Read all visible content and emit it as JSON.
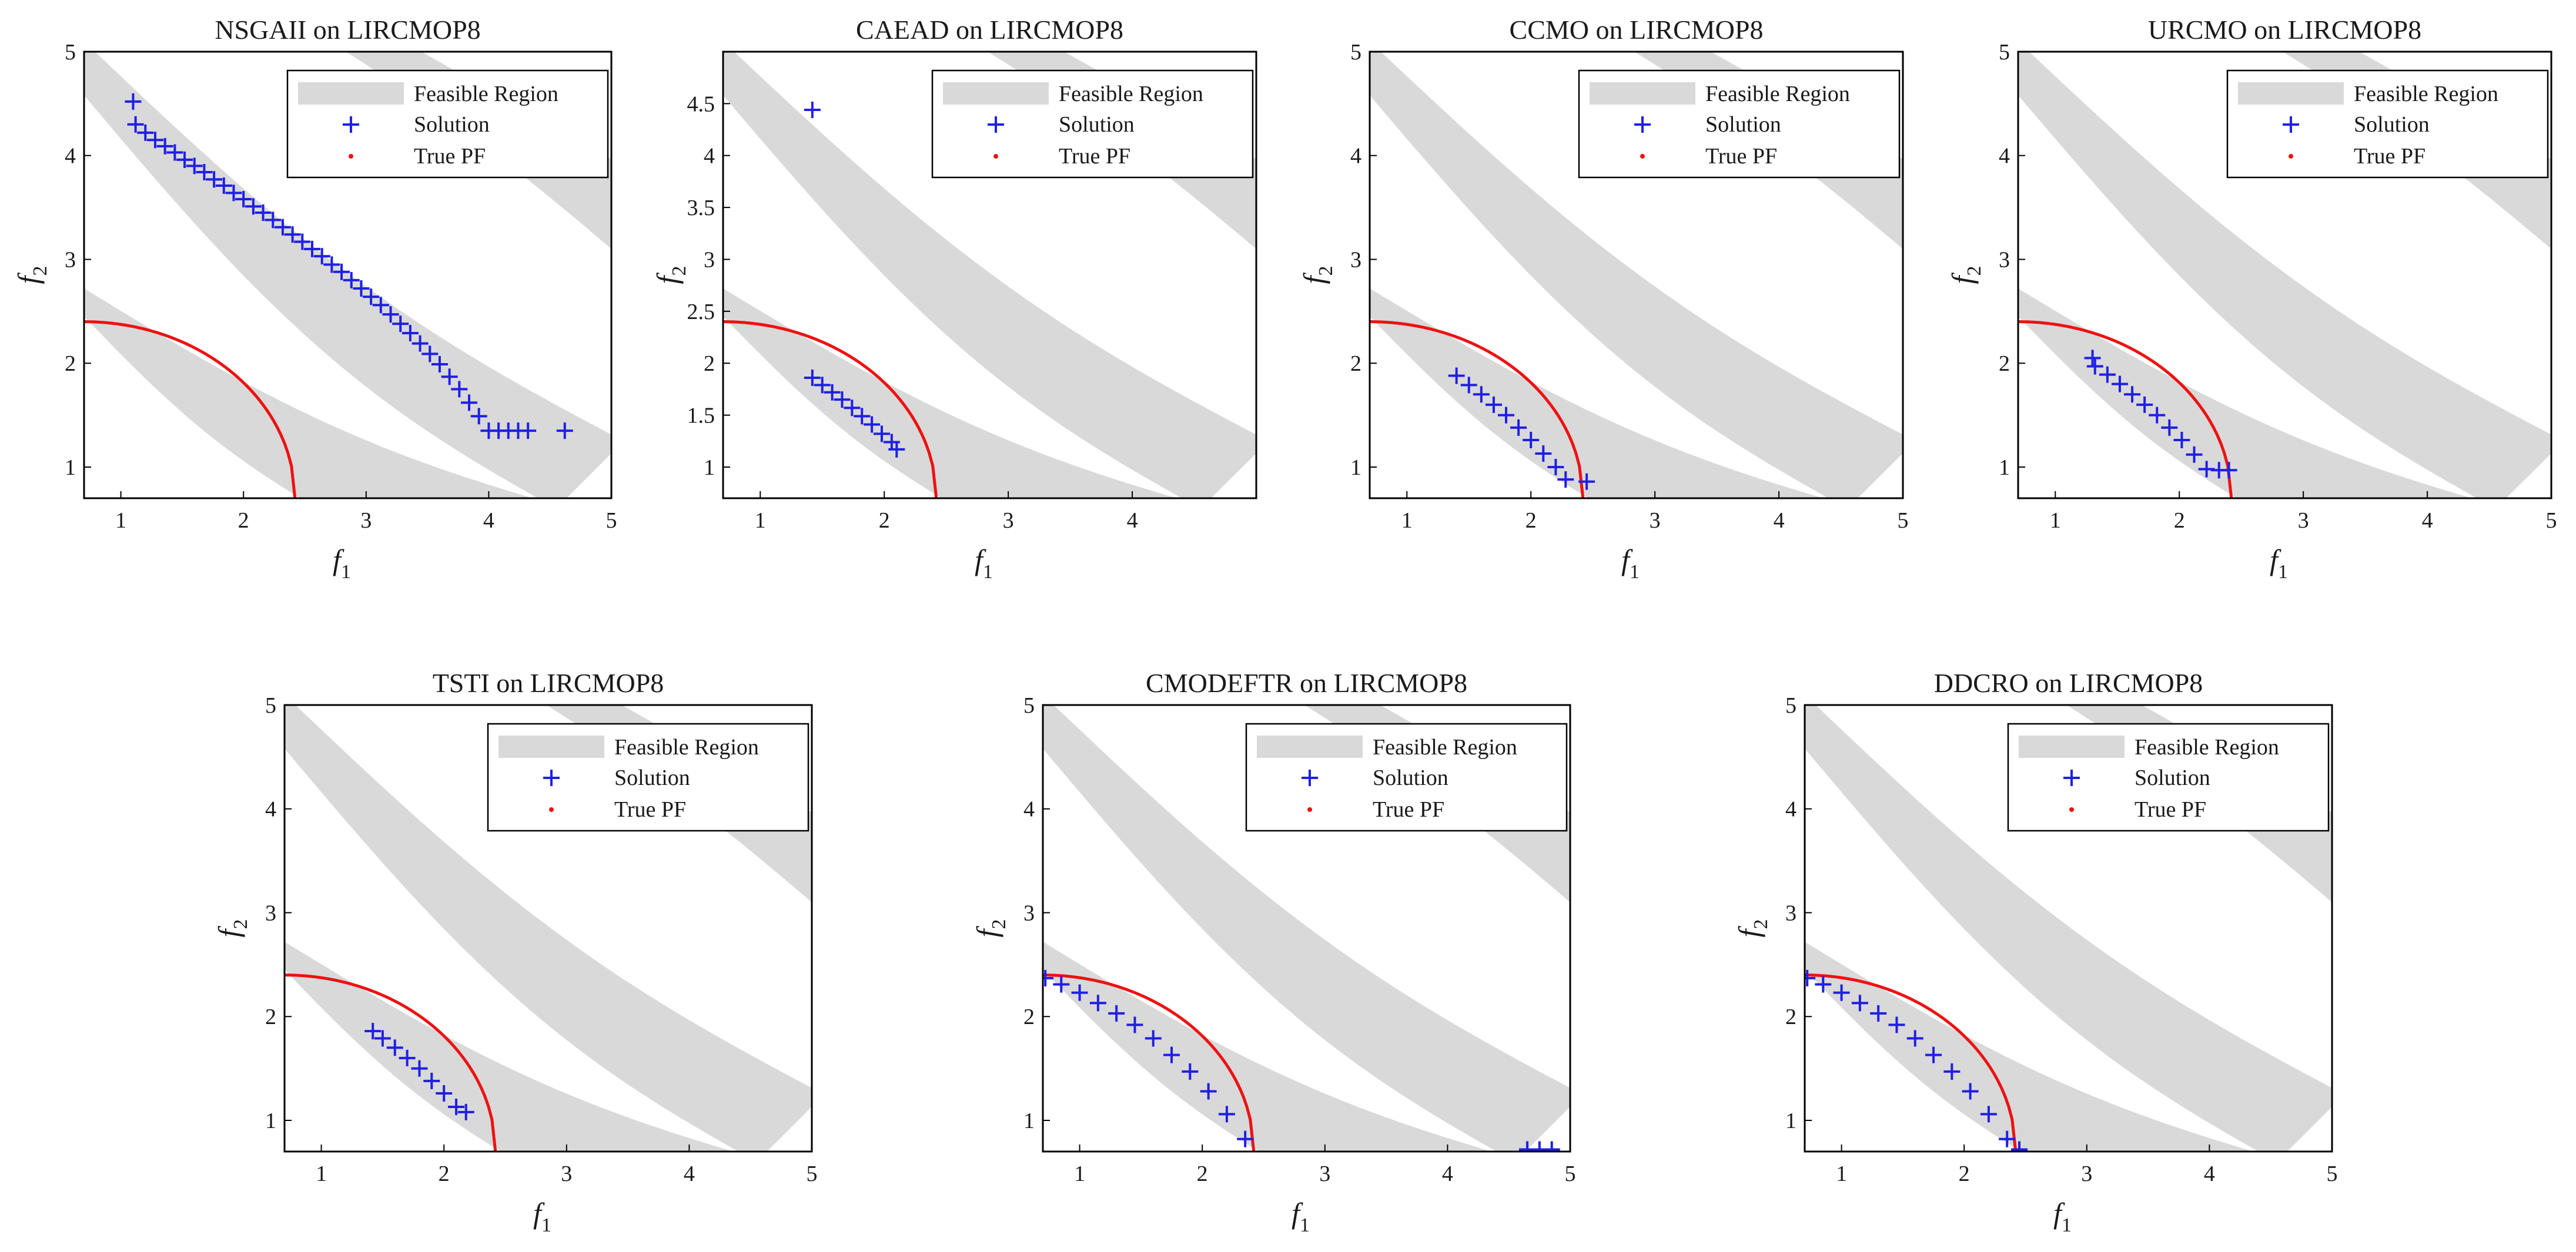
{
  "figure_title": "",
  "colors": {
    "feasible": "#d9d9d9",
    "solution": "#1f1fe6",
    "true_pf": "#ee1111",
    "axes": "#000000"
  },
  "chart_data": [
    {
      "type": "scatter",
      "title": "NSGAII on LIRCMOP8",
      "xlabel": "f",
      "xlabel_sub": "1",
      "ylabel": "f",
      "ylabel_sub": "2",
      "xlim": [
        0.7,
        5.0
      ],
      "ylim": [
        0.7,
        5.0
      ],
      "xticks": [
        "1",
        "2",
        "3",
        "4",
        "5"
      ],
      "yticks": [
        "1",
        "2",
        "3",
        "4",
        "5"
      ],
      "legend_position": "top-right",
      "legend": [
        "Feasible Region",
        "Solution",
        "True PF"
      ],
      "solution": {
        "x": [
          1.1,
          1.12,
          1.2,
          1.28,
          1.36,
          1.44,
          1.52,
          1.6,
          1.68,
          1.76,
          1.84,
          1.92,
          2.0,
          2.08,
          2.16,
          2.24,
          2.32,
          2.4,
          2.48,
          2.56,
          2.64,
          2.72,
          2.8,
          2.88,
          2.96,
          3.04,
          3.12,
          3.2,
          3.28,
          3.36,
          3.44,
          3.52,
          3.6,
          3.68,
          3.76,
          3.84,
          3.92,
          4.0,
          4.08,
          4.16,
          4.24,
          4.32,
          4.62
        ],
        "y": [
          4.52,
          4.3,
          4.22,
          4.15,
          4.09,
          4.03,
          3.96,
          3.9,
          3.84,
          3.77,
          3.71,
          3.64,
          3.58,
          3.51,
          3.45,
          3.38,
          3.31,
          3.24,
          3.17,
          3.1,
          3.03,
          2.95,
          2.88,
          2.8,
          2.72,
          2.64,
          2.56,
          2.47,
          2.38,
          2.29,
          2.19,
          2.09,
          1.99,
          1.87,
          1.75,
          1.62,
          1.49,
          1.35,
          1.35,
          1.35,
          1.35,
          1.35,
          1.35
        ]
      }
    },
    {
      "type": "scatter",
      "title": "CAEAD on LIRCMOP8",
      "xlabel": "f",
      "xlabel_sub": "1",
      "ylabel": "f",
      "ylabel_sub": "2",
      "xlim": [
        0.7,
        5.0
      ],
      "ylim": [
        0.7,
        5.0
      ],
      "xticks": [
        "1",
        "2",
        "3",
        "4"
      ],
      "yticks": [
        "1",
        "1.5",
        "2",
        "2.5",
        "3",
        "3.5",
        "4",
        "4.5"
      ],
      "legend_position": "top-right",
      "legend": [
        "Feasible Region",
        "Solution",
        "True PF"
      ],
      "solution": {
        "x": [
          1.42,
          1.42,
          1.5,
          1.58,
          1.66,
          1.74,
          1.82,
          1.9,
          1.98,
          2.06,
          2.1
        ],
        "y": [
          4.44,
          1.86,
          1.79,
          1.72,
          1.65,
          1.57,
          1.49,
          1.41,
          1.32,
          1.24,
          1.17
        ]
      }
    },
    {
      "type": "scatter",
      "title": "CCMO on LIRCMOP8",
      "xlabel": "f",
      "xlabel_sub": "1",
      "ylabel": "f",
      "ylabel_sub": "2",
      "xlim": [
        0.7,
        5.0
      ],
      "ylim": [
        0.7,
        5.0
      ],
      "xticks": [
        "1",
        "2",
        "3",
        "4",
        "5"
      ],
      "yticks": [
        "1",
        "2",
        "3",
        "4",
        "5"
      ],
      "legend_position": "top-right",
      "legend": [
        "Feasible Region",
        "Solution",
        "True PF"
      ],
      "solution": {
        "x": [
          1.4,
          1.5,
          1.6,
          1.7,
          1.8,
          1.9,
          2.0,
          2.1,
          2.2,
          2.28,
          2.45
        ],
        "y": [
          1.88,
          1.79,
          1.7,
          1.6,
          1.5,
          1.38,
          1.26,
          1.13,
          1.0,
          0.88,
          0.86
        ]
      }
    },
    {
      "type": "scatter",
      "title": "URCMO on LIRCMOP8",
      "xlabel": "f",
      "xlabel_sub": "1",
      "ylabel": "f",
      "ylabel_sub": "2",
      "xlim": [
        0.7,
        5.0
      ],
      "ylim": [
        0.7,
        5.0
      ],
      "xticks": [
        "1",
        "2",
        "3",
        "4",
        "5"
      ],
      "yticks": [
        "1",
        "2",
        "3",
        "4",
        "5"
      ],
      "legend_position": "top-right",
      "legend": [
        "Feasible Region",
        "Solution",
        "True PF"
      ],
      "solution": {
        "x": [
          1.3,
          1.32,
          1.42,
          1.52,
          1.62,
          1.72,
          1.82,
          1.92,
          2.02,
          2.12,
          2.22,
          2.32,
          2.4
        ],
        "y": [
          2.05,
          1.97,
          1.89,
          1.8,
          1.7,
          1.6,
          1.5,
          1.38,
          1.26,
          1.12,
          0.98,
          0.97,
          0.97
        ]
      }
    },
    {
      "type": "scatter",
      "title": "TSTI on LIRCMOP8",
      "xlabel": "f",
      "xlabel_sub": "1",
      "ylabel": "f",
      "ylabel_sub": "2",
      "xlim": [
        0.7,
        5.0
      ],
      "ylim": [
        0.7,
        5.0
      ],
      "xticks": [
        "1",
        "2",
        "3",
        "4",
        "5"
      ],
      "yticks": [
        "1",
        "2",
        "3",
        "4",
        "5"
      ],
      "legend_position": "top-right",
      "legend": [
        "Feasible Region",
        "Solution",
        "True PF"
      ],
      "solution": {
        "x": [
          1.42,
          1.5,
          1.6,
          1.7,
          1.8,
          1.9,
          2.0,
          2.1,
          2.18
        ],
        "y": [
          1.86,
          1.79,
          1.7,
          1.6,
          1.5,
          1.38,
          1.26,
          1.13,
          1.08
        ]
      }
    },
    {
      "type": "scatter",
      "title": "CMODEFTR on LIRCMOP8",
      "xlabel": "f",
      "xlabel_sub": "1",
      "ylabel": "f",
      "ylabel_sub": "2",
      "xlim": [
        0.7,
        5.0
      ],
      "ylim": [
        0.7,
        5.0
      ],
      "xticks": [
        "1",
        "2",
        "3",
        "4",
        "5"
      ],
      "yticks": [
        "1",
        "2",
        "3",
        "4",
        "5"
      ],
      "legend_position": "top-right",
      "legend": [
        "Feasible Region",
        "Solution",
        "True PF"
      ],
      "solution": {
        "x": [
          0.72,
          0.85,
          1.0,
          1.15,
          1.3,
          1.45,
          1.6,
          1.75,
          1.9,
          2.05,
          2.2,
          2.35,
          4.65,
          4.75,
          4.85
        ],
        "y": [
          2.37,
          2.31,
          2.23,
          2.13,
          2.03,
          1.92,
          1.79,
          1.63,
          1.47,
          1.28,
          1.06,
          0.82,
          0.72,
          0.72,
          0.72
        ]
      }
    },
    {
      "type": "scatter",
      "title": "DDCRO on LIRCMOP8",
      "xlabel": "f",
      "xlabel_sub": "1",
      "ylabel": "f",
      "ylabel_sub": "2",
      "xlim": [
        0.7,
        5.0
      ],
      "ylim": [
        0.7,
        5.0
      ],
      "xticks": [
        "1",
        "2",
        "3",
        "4",
        "5"
      ],
      "yticks": [
        "1",
        "2",
        "3",
        "4",
        "5"
      ],
      "legend_position": "top-right",
      "legend": [
        "Feasible Region",
        "Solution",
        "True PF"
      ],
      "solution": {
        "x": [
          0.72,
          0.85,
          1.0,
          1.15,
          1.3,
          1.45,
          1.6,
          1.75,
          1.9,
          2.05,
          2.2,
          2.35,
          2.45
        ],
        "y": [
          2.37,
          2.31,
          2.23,
          2.13,
          2.03,
          1.92,
          1.79,
          1.63,
          1.47,
          1.28,
          1.06,
          0.82,
          0.72
        ]
      }
    }
  ]
}
